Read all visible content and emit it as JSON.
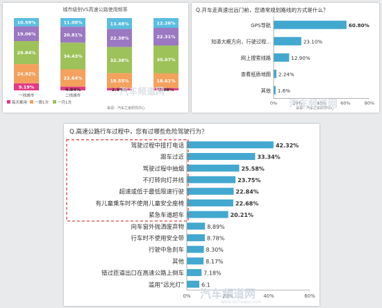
{
  "chart_data": [
    {
      "type": "bar",
      "stacked": true,
      "title": "城市级别VS高速公路使用频率",
      "categories": [
        "一线城市",
        "二线城市",
        "",
        ""
      ],
      "series": [
        {
          "name": "每天都用",
          "color": "#e23a85",
          "values": [
            9.19,
            4.84,
            2.94,
            2.88
          ]
        },
        {
          "name": "一周1次",
          "color": "#f4a15d",
          "values": [
            24.92,
            22.64,
            18.55,
            18.61
          ]
        },
        {
          "name": "一月1次",
          "color": "#9dc25a",
          "values": [
            29.84,
            34.43,
            32.38,
            35.07
          ]
        },
        {
          "name": "",
          "color": "#9b78c2",
          "values": [
            19.06,
            20.81,
            22.38,
            22.31
          ]
        },
        {
          "name": "",
          "color": "#59bde0",
          "values": [
            10.59,
            11.0,
            13.48,
            12.26
          ]
        }
      ],
      "value_labels": [
        [
          "9.19%",
          "24.92%",
          "29.84%",
          "19.06%",
          "10.59%"
        ],
        [
          "4.84%",
          "22.64%",
          "34.43%",
          "20.81%",
          "11.00%"
        ],
        [
          "2.94%",
          "18.55%",
          "32.38%",
          "22.38%",
          "13.48%"
        ],
        [
          "2.88%",
          "18.61%",
          "35.07%",
          "22.31%",
          "12.26%"
        ]
      ],
      "source": "来源：汽车之家研究中心",
      "legend_position": "bottom-left"
    },
    {
      "type": "bar",
      "orientation": "horizontal",
      "title": "Q.开车走高速出远门前，您通常规划路线的方式是什么？",
      "categories": [
        "GPS导航",
        "知道大概方向，行驶过程...",
        "网上搜索线路",
        "查看纸质地图",
        "其他"
      ],
      "values": [
        60.8,
        23.1,
        12.9,
        2.24,
        1.6
      ],
      "value_labels": [
        "60.80%",
        "23.10%",
        "12.90%",
        "2.24%",
        "1.6%"
      ],
      "xticks": [
        "0%",
        "20%",
        "40%",
        "60%",
        "80%"
      ],
      "xlim": [
        0,
        80
      ],
      "bar_color": "#42a8cf",
      "source": "来源：汽车之家研究中心"
    },
    {
      "type": "bar",
      "orientation": "horizontal",
      "title": "Q.高速公路行车过程中，您有过哪些危险驾驶行为？",
      "categories": [
        "驾驶过程中接打电话",
        "跟车过近",
        "驾驶过程中抽烟",
        "不打转向灯并线",
        "超速或低于最低限速行驶",
        "有儿童乘车时不使用儿童安全座椅",
        "紧急车道超车",
        "向车窗外抛洒废弃物",
        "行车时不使用安全带",
        "行驶中急刹车",
        "其他",
        "错过匝道出口在高速公路上倒车",
        "滥用“远光灯”"
      ],
      "values": [
        42.32,
        33.34,
        25.58,
        23.75,
        22.84,
        22.68,
        20.21,
        8.89,
        8.78,
        8.3,
        8.17,
        7.18,
        6.1
      ],
      "value_labels": [
        "42.32%",
        "33.34%",
        "25.58%",
        "23.75%",
        "22.84%",
        "22.68%",
        "20.21%",
        "8.89%",
        "8.78%",
        "8.30%",
        "8.17%",
        "7.18%",
        "6.1"
      ],
      "xticks": [
        "0%",
        "20%",
        "40%",
        "60%"
      ],
      "xlim": [
        0,
        60
      ],
      "highlight_box": {
        "first": 0,
        "last": 6
      },
      "bar_color": "#42a8cf"
    }
  ],
  "watermarks": [
    {
      "text": "汽车频道网"
    },
    {
      "text": "汽车频道网"
    },
    {
      "text": "汽车频道网"
    },
    {
      "text": "www.qicheapp.com"
    }
  ]
}
